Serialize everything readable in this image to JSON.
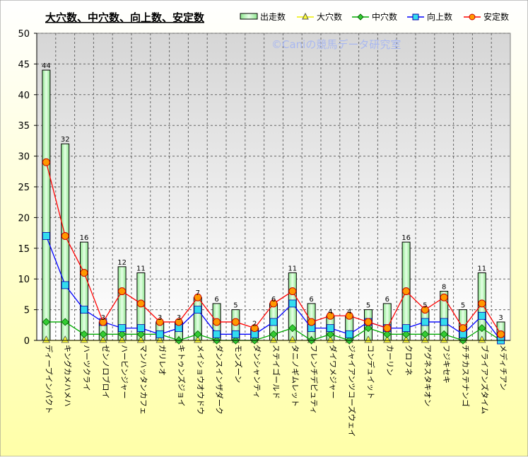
{
  "chart_data": {
    "type": "bar",
    "title": "大穴数、中穴数、向上数、安定数",
    "watermark": "©Caniの競馬データ研究室",
    "categories": [
      "ディープインパクト",
      "キングカメハメハ",
      "ハーツクライ",
      "ゼンノロブロイ",
      "ハービンジャー",
      "マンハッタンカフェ",
      "ガリレオ",
      "キトゥンズジョイ",
      "メイショウオウドウ",
      "ダンスインザダーク",
      "モンズーン",
      "ダンシャンティ",
      "ステイゴールド",
      "タニノギムレット",
      "フレンチデピュティ",
      "ダイワメジャー",
      "ジャイアンツコーズウェイ",
      "コンデュイット",
      "カーリン",
      "クロフネ",
      "アグネスタキオン",
      "フジキセキ",
      "チチカステナンゴ",
      "ブライアンズタイム",
      "メディチアン"
    ],
    "ylim": [
      0,
      50
    ],
    "yticks": [
      0,
      5,
      10,
      15,
      20,
      25,
      30,
      35,
      40,
      45,
      50
    ],
    "grid": true,
    "legend_position": "top-right",
    "series": [
      {
        "name": "出走数",
        "kind": "bar",
        "color": "#66dd66",
        "values": [
          44,
          32,
          16,
          3,
          12,
          11,
          3,
          3,
          7,
          6,
          5,
          2,
          6,
          11,
          6,
          4,
          4,
          5,
          6,
          16,
          5,
          8,
          5,
          11,
          3
        ]
      },
      {
        "name": "大穴数",
        "kind": "line",
        "color": "#eeee00",
        "values": [
          0,
          0,
          0,
          0,
          0,
          0,
          0,
          0,
          0,
          0,
          0,
          0,
          0,
          0,
          0,
          0,
          0,
          0,
          0,
          0,
          0,
          0,
          0,
          0,
          0
        ]
      },
      {
        "name": "中穴数",
        "kind": "line",
        "color": "#00aa00",
        "values": [
          3,
          3,
          1,
          1,
          1,
          1,
          1,
          0,
          1,
          0,
          0,
          0,
          1,
          2,
          0,
          1,
          0,
          2,
          1,
          1,
          1,
          1,
          0,
          2,
          0
        ]
      },
      {
        "name": "向上数",
        "kind": "line",
        "color": "#0000ff",
        "values": [
          17,
          9,
          5,
          3,
          2,
          2,
          1,
          2,
          5,
          1,
          1,
          1,
          3,
          6,
          2,
          2,
          1,
          3,
          2,
          2,
          3,
          3,
          1,
          4,
          0
        ]
      },
      {
        "name": "安定数",
        "kind": "line",
        "color": "#ff0000",
        "values": [
          29,
          17,
          11,
          3,
          8,
          6,
          3,
          3,
          7,
          3,
          3,
          2,
          6,
          8,
          3,
          4,
          4,
          3,
          2,
          8,
          5,
          7,
          2,
          6,
          1
        ]
      }
    ]
  }
}
